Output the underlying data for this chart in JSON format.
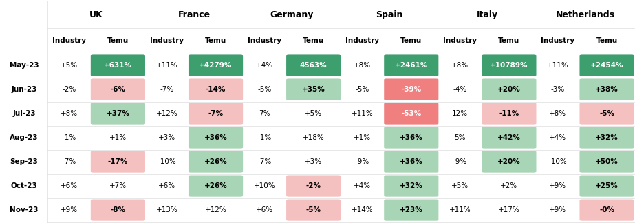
{
  "countries": [
    "UK",
    "France",
    "Germany",
    "Spain",
    "Italy",
    "Netherlands"
  ],
  "months": [
    "May-23",
    "Jun-23",
    "Jul-23",
    "Aug-23",
    "Sep-23",
    "Oct-23",
    "Nov-23"
  ],
  "industry": [
    [
      5,
      -2,
      8,
      -1,
      -7,
      6,
      9
    ],
    [
      11,
      -7,
      12,
      3,
      -10,
      6,
      13
    ],
    [
      4,
      -5,
      7,
      -1,
      -7,
      10,
      6
    ],
    [
      8,
      -5,
      11,
      1,
      -9,
      4,
      14
    ],
    [
      8,
      -4,
      12,
      5,
      -9,
      5,
      11
    ],
    [
      11,
      -3,
      8,
      4,
      -10,
      9,
      9
    ]
  ],
  "temu": [
    [
      631,
      -6,
      37,
      1,
      -17,
      7,
      -8
    ],
    [
      4279,
      -14,
      -7,
      36,
      26,
      26,
      12
    ],
    [
      4563,
      35,
      5,
      18,
      3,
      -2,
      -5
    ],
    [
      2461,
      -39,
      -53,
      36,
      36,
      32,
      23
    ],
    [
      10789,
      20,
      -11,
      42,
      20,
      2,
      17
    ],
    [
      2454,
      38,
      -5,
      32,
      50,
      25,
      0
    ]
  ],
  "industry_labels": [
    [
      "+5%",
      "-2%",
      "+8%",
      "-1%",
      "-7%",
      "+6%",
      "+9%"
    ],
    [
      "+11%",
      "-7%",
      "+12%",
      "+3%",
      "-10%",
      "+6%",
      "+13%"
    ],
    [
      "+4%",
      "-5%",
      "7%",
      "-1%",
      "-7%",
      "+10%",
      "+6%"
    ],
    [
      "+8%",
      "-5%",
      "+11%",
      "+1%",
      "-9%",
      "+4%",
      "+14%"
    ],
    [
      "+8%",
      "-4%",
      "12%",
      "5%",
      "-9%",
      "+5%",
      "+11%"
    ],
    [
      "+11%",
      "-3%",
      "+8%",
      "+4%",
      "-10%",
      "+9%",
      "+9%"
    ]
  ],
  "temu_labels": [
    [
      "+631%",
      "-6%",
      "+37%",
      "+1%",
      "-17%",
      "+7%",
      "-8%"
    ],
    [
      "+4279%",
      "-14%",
      "-7%",
      "+36%",
      "+26%",
      "+26%",
      "+12%"
    ],
    [
      "4563%",
      "+35%",
      "+5%",
      "+18%",
      "+3%",
      "-2%",
      "-5%"
    ],
    [
      "+2461%",
      "-39%",
      "-53%",
      "+36%",
      "+36%",
      "+32%",
      "+23%"
    ],
    [
      "+10789%",
      "+20%",
      "-11%",
      "+42%",
      "+20%",
      "+2%",
      "+17%"
    ],
    [
      "+2454%",
      "+38%",
      "-5%",
      "+32%",
      "+50%",
      "+25%",
      "-0%"
    ]
  ],
  "background_color": "#ffffff",
  "positive_green_strong": "#3d9e6e",
  "positive_green_light": "#a8d5b5",
  "negative_red_light": "#f5c0c0",
  "negative_red_strong": "#f08080",
  "line_color": "#dddddd"
}
